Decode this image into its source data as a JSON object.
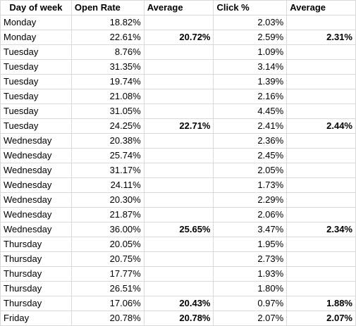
{
  "headers": [
    "Day of week",
    "Open Rate",
    "Average",
    "Click %",
    "Average"
  ],
  "rows": [
    [
      "Monday",
      "18.82%",
      "",
      "2.03%",
      ""
    ],
    [
      "Monday",
      "22.61%",
      "20.72%",
      "2.59%",
      "2.31%"
    ],
    [
      "Tuesday",
      "8.76%",
      "",
      "1.09%",
      ""
    ],
    [
      "Tuesday",
      "31.35%",
      "",
      "3.14%",
      ""
    ],
    [
      "Tuesday",
      "19.74%",
      "",
      "1.39%",
      ""
    ],
    [
      "Tuesday",
      "21.08%",
      "",
      "2.16%",
      ""
    ],
    [
      "Tuesday",
      "31.05%",
      "",
      "4.45%",
      ""
    ],
    [
      "Tuesday",
      "24.25%",
      "22.71%",
      "2.41%",
      "2.44%"
    ],
    [
      "Wednesday",
      "20.38%",
      "",
      "2.36%",
      ""
    ],
    [
      "Wednesday",
      "25.74%",
      "",
      "2.45%",
      ""
    ],
    [
      "Wednesday",
      "31.17%",
      "",
      "2.05%",
      ""
    ],
    [
      "Wednesday",
      "24.11%",
      "",
      "1.73%",
      ""
    ],
    [
      "Wednesday",
      "20.30%",
      "",
      "2.29%",
      ""
    ],
    [
      "Wednesday",
      "21.87%",
      "",
      "2.06%",
      ""
    ],
    [
      "Wednesday",
      "36.00%",
      "25.65%",
      "3.47%",
      "2.34%"
    ],
    [
      "Thursday",
      "20.05%",
      "",
      "1.95%",
      ""
    ],
    [
      "Thursday",
      "20.75%",
      "",
      "2.73%",
      ""
    ],
    [
      "Thursday",
      "17.77%",
      "",
      "1.93%",
      ""
    ],
    [
      "Thursday",
      "26.51%",
      "",
      "1.80%",
      ""
    ],
    [
      "Thursday",
      "17.06%",
      "20.43%",
      "0.97%",
      "1.88%"
    ],
    [
      "Friday",
      "20.78%",
      "20.78%",
      "2.07%",
      "2.07%"
    ]
  ]
}
